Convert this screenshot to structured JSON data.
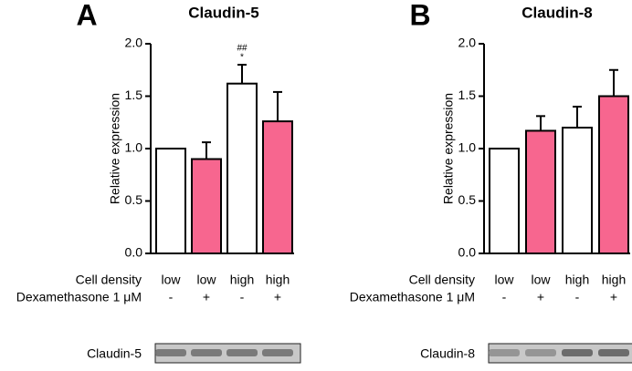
{
  "chart_data": [
    {
      "type": "bar",
      "panel_label": "A",
      "title": "Claudin-5",
      "y_label": "Relative expression",
      "ylim": [
        0,
        2
      ],
      "yticks": [
        {
          "value": 0,
          "label": "0.0"
        },
        {
          "value": 0.5,
          "label": "0.5"
        },
        {
          "value": 1,
          "label": "1.0"
        },
        {
          "value": 1.5,
          "label": "1.5"
        },
        {
          "value": 2,
          "label": "2.0"
        }
      ],
      "row_labels": [
        "Cell density",
        "Dexamethasone 1 μM"
      ],
      "categories": [
        "low",
        "low",
        "high",
        "high"
      ],
      "treatment": [
        "-",
        "+",
        "-",
        "+"
      ],
      "values": [
        1.0,
        0.9,
        1.62,
        1.26
      ],
      "errors": [
        null,
        0.16,
        0.18,
        0.28
      ],
      "colors": [
        "#ffffff",
        "#f7668f",
        "#ffffff",
        "#f7668f"
      ],
      "annotations": [
        null,
        null,
        [
          "##",
          "*"
        ],
        null
      ],
      "blot_label": "Claudin-5"
    },
    {
      "type": "bar",
      "panel_label": "B",
      "title": "Claudin-8",
      "y_label": "Relative expression",
      "ylim": [
        0,
        2
      ],
      "yticks": [
        {
          "value": 0,
          "label": "0.0"
        },
        {
          "value": 0.5,
          "label": "0.5"
        },
        {
          "value": 1,
          "label": "1.0"
        },
        {
          "value": 1.5,
          "label": "1.5"
        },
        {
          "value": 2,
          "label": "2.0"
        }
      ],
      "row_labels": [
        "Cell density",
        "Dexamethasone 1 μM"
      ],
      "categories": [
        "low",
        "low",
        "high",
        "high"
      ],
      "treatment": [
        "-",
        "+",
        "-",
        "+"
      ],
      "values": [
        1.0,
        1.17,
        1.2,
        1.5
      ],
      "errors": [
        null,
        0.14,
        0.2,
        0.25
      ],
      "colors": [
        "#ffffff",
        "#f7668f",
        "#ffffff",
        "#f7668f"
      ],
      "blot_label": "Claudin-8"
    }
  ]
}
